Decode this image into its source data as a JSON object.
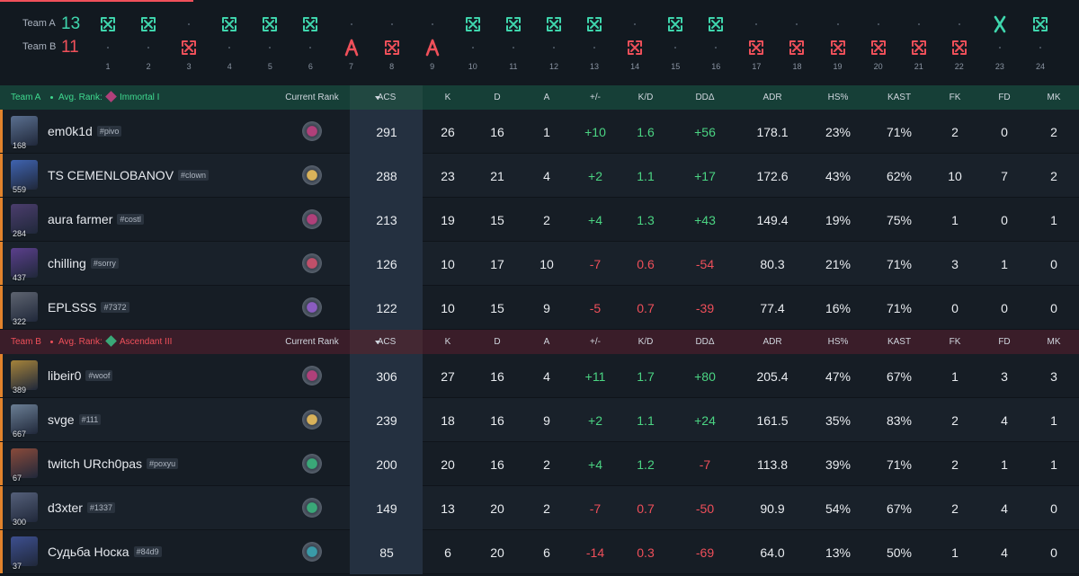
{
  "timeline": {
    "teams": [
      {
        "name": "Team A",
        "score": 13,
        "color": "#3fd6ad"
      },
      {
        "name": "Team B",
        "score": 11,
        "color": "#f0505a"
      }
    ],
    "rounds": [
      {
        "number": 1,
        "winner": "Team A",
        "outcome": "elimination"
      },
      {
        "number": 2,
        "winner": "Team A",
        "outcome": "elimination"
      },
      {
        "number": 3,
        "winner": "Team B",
        "outcome": "elimination"
      },
      {
        "number": 4,
        "winner": "Team A",
        "outcome": "elimination"
      },
      {
        "number": 5,
        "winner": "Team A",
        "outcome": "elimination"
      },
      {
        "number": 6,
        "winner": "Team A",
        "outcome": "elimination"
      },
      {
        "number": 7,
        "winner": "Team B",
        "outcome": "spike"
      },
      {
        "number": 8,
        "winner": "Team B",
        "outcome": "elimination"
      },
      {
        "number": 9,
        "winner": "Team B",
        "outcome": "spike"
      },
      {
        "number": 10,
        "winner": "Team A",
        "outcome": "elimination"
      },
      {
        "number": 11,
        "winner": "Team A",
        "outcome": "elimination"
      },
      {
        "number": 12,
        "winner": "Team A",
        "outcome": "elimination"
      },
      {
        "number": 13,
        "winner": "Team A",
        "outcome": "elimination"
      },
      {
        "number": 14,
        "winner": "Team B",
        "outcome": "elimination"
      },
      {
        "number": 15,
        "winner": "Team A",
        "outcome": "elimination"
      },
      {
        "number": 16,
        "winner": "Team A",
        "outcome": "elimination"
      },
      {
        "number": 17,
        "winner": "Team B",
        "outcome": "elimination"
      },
      {
        "number": 18,
        "winner": "Team B",
        "outcome": "elimination"
      },
      {
        "number": 19,
        "winner": "Team B",
        "outcome": "elimination"
      },
      {
        "number": 20,
        "winner": "Team B",
        "outcome": "elimination"
      },
      {
        "number": 21,
        "winner": "Team B",
        "outcome": "elimination"
      },
      {
        "number": 22,
        "winner": "Team B",
        "outcome": "elimination"
      },
      {
        "number": 23,
        "winner": "Team A",
        "outcome": "defuse"
      },
      {
        "number": 24,
        "winner": "Team A",
        "outcome": "elimination"
      }
    ]
  },
  "tables": [
    {
      "team": "Team A",
      "avg_rank_label": "Avg. Rank:",
      "avg_rank": "Immortal I",
      "color": "#3fd98f",
      "header_bg": "#163f37",
      "avg_rank_color": "#b0407a",
      "columns": [
        "Current Rank",
        "ACS",
        "K",
        "D",
        "A",
        "+/-",
        "K/D",
        "DDΔ",
        "ADR",
        "HS%",
        "KAST",
        "FK",
        "FD",
        "MK"
      ],
      "players": [
        {
          "name": "em0k1d",
          "tag": "#pivo",
          "level": "168",
          "avatar_color": "#5a6f8f",
          "rank_color": "#b0407a",
          "stats": [
            "291",
            "26",
            "16",
            "1",
            "+10",
            "1.6",
            "+56",
            "178.1",
            "23%",
            "71%",
            "2",
            "0",
            "2"
          ]
        },
        {
          "name": "TS CEMENLOBANOV",
          "tag": "#clown",
          "level": "559",
          "avatar_color": "#3f63b0",
          "rank_color": "#d9b25a",
          "stats": [
            "288",
            "23",
            "21",
            "4",
            "+2",
            "1.1",
            "+17",
            "172.6",
            "43%",
            "62%",
            "10",
            "7",
            "2"
          ]
        },
        {
          "name": "aura farmer",
          "tag": "#costl",
          "level": "284",
          "avatar_color": "#4b3d6d",
          "rank_color": "#b0407a",
          "stats": [
            "213",
            "19",
            "15",
            "2",
            "+4",
            "1.3",
            "+43",
            "149.4",
            "19%",
            "75%",
            "1",
            "0",
            "1"
          ]
        },
        {
          "name": "chilling",
          "tag": "#sorry",
          "level": "437",
          "avatar_color": "#5b3f8c",
          "rank_color": "#c0506a",
          "stats": [
            "126",
            "10",
            "17",
            "10",
            "-7",
            "0.6",
            "-54",
            "80.3",
            "21%",
            "71%",
            "3",
            "1",
            "0"
          ]
        },
        {
          "name": "EPLSSS",
          "tag": "#7372",
          "level": "322",
          "avatar_color": "#5e6470",
          "rank_color": "#8a5cc0",
          "stats": [
            "122",
            "10",
            "15",
            "9",
            "-5",
            "0.7",
            "-39",
            "77.4",
            "16%",
            "71%",
            "0",
            "0",
            "0"
          ]
        }
      ]
    },
    {
      "team": "Team B",
      "avg_rank_label": "Avg. Rank:",
      "avg_rank": "Ascendant III",
      "color": "#f0505a",
      "header_bg": "#3a1d29",
      "avg_rank_color": "#3aa878",
      "columns": [
        "Current Rank",
        "ACS",
        "K",
        "D",
        "A",
        "+/-",
        "K/D",
        "DDΔ",
        "ADR",
        "HS%",
        "KAST",
        "FK",
        "FD",
        "MK"
      ],
      "players": [
        {
          "name": "libeir0",
          "tag": "#woof",
          "level": "389",
          "avatar_color": "#a5833a",
          "rank_color": "#b0407a",
          "stats": [
            "306",
            "27",
            "16",
            "4",
            "+11",
            "1.7",
            "+80",
            "205.4",
            "47%",
            "67%",
            "1",
            "3",
            "3"
          ]
        },
        {
          "name": "svge",
          "tag": "#111",
          "level": "667",
          "avatar_color": "#6b7f95",
          "rank_color": "#d9b25a",
          "stats": [
            "239",
            "18",
            "16",
            "9",
            "+2",
            "1.1",
            "+24",
            "161.5",
            "35%",
            "83%",
            "2",
            "4",
            "1"
          ]
        },
        {
          "name": "twitch URch0pas",
          "tag": "#poxyu",
          "level": "67",
          "avatar_color": "#8a4a3a",
          "rank_color": "#3aa878",
          "stats": [
            "200",
            "20",
            "16",
            "2",
            "+4",
            "1.2",
            "-7",
            "113.8",
            "39%",
            "71%",
            "2",
            "1",
            "1"
          ]
        },
        {
          "name": "d3xter",
          "tag": "#1337",
          "level": "300",
          "avatar_color": "#55607a",
          "rank_color": "#3aa878",
          "stats": [
            "149",
            "13",
            "20",
            "2",
            "-7",
            "0.7",
            "-50",
            "90.9",
            "54%",
            "67%",
            "2",
            "4",
            "0"
          ]
        },
        {
          "name": "Судьба Носка",
          "tag": "#84d9",
          "level": "37",
          "avatar_color": "#3d4f8f",
          "rank_color": "#3a9aa8",
          "stats": [
            "85",
            "6",
            "20",
            "6",
            "-14",
            "0.3",
            "-69",
            "64.0",
            "13%",
            "50%",
            "1",
            "4",
            "0"
          ]
        }
      ]
    }
  ]
}
